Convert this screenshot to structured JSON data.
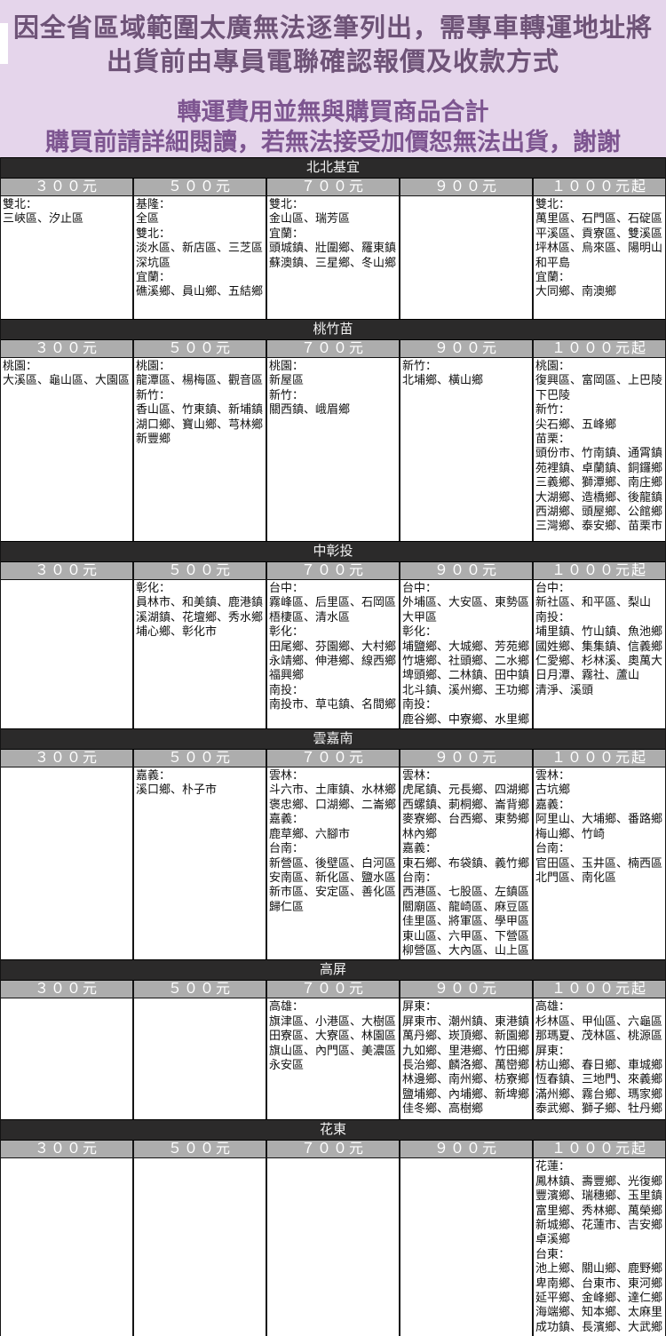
{
  "banner": {
    "line1": "因全省區域範圍太廣無法逐筆列出，需專車轉運地址將",
    "line2": "出貨前由專員電聯確認報價及收款方式",
    "line3": "轉運費用並無與購買商品合計",
    "line4": "購買前請詳細閱讀，若無法接受加價恕無法出貨，謝謝"
  },
  "colors": {
    "banner_bg": "#e5d5eb",
    "banner_text_primary": "#6e5377",
    "banner_text_secondary": "#7d5590",
    "section_bar_bg": "#2b2a2a",
    "section_bar_text": "#f2f2f2",
    "price_header_bg": "#adadad",
    "price_header_text": "#ffffff",
    "cell_bg": "#ffffff",
    "cell_text": "#111111",
    "border": "#141414"
  },
  "price_headers": [
    "３００元",
    "５００元",
    "７００元",
    "９００元",
    "１０００元起"
  ],
  "sections": [
    {
      "title": "北北基宜",
      "columns": [
        [
          "雙北：",
          "三峽區、汐止區"
        ],
        [
          "基隆：",
          "全區",
          "雙北：",
          "淡水區、新店區、三芝區",
          "深坑區",
          "宜蘭：",
          "礁溪鄉、員山鄉、五結鄉"
        ],
        [
          "雙北：",
          "金山區、瑞芳區",
          "宜蘭：",
          "頭城鎮、壯圍鄉、羅東鎮",
          "蘇澳鎮、三星鄉、冬山鄉"
        ],
        [],
        [
          "雙北：",
          "萬里區、石門區、石碇區",
          "平溪區、貢寮區、雙溪區",
          "坪林區、烏來區、陽明山",
          "和平島",
          "宜蘭：",
          "大同鄉、南澳鄉"
        ]
      ]
    },
    {
      "title": "桃竹苗",
      "columns": [
        [
          "桃園：",
          "大溪區、龜山區、大園區"
        ],
        [
          "桃園：",
          "龍潭區、楊梅區、觀音區",
          "新竹：",
          "香山區、竹東鎮、新埔鎮",
          "湖口鄉、寶山鄉、芎林鄉",
          "新豐鄉"
        ],
        [
          "桃園：",
          "新屋區",
          "新竹：",
          "關西鎮、峨眉鄉"
        ],
        [
          "新竹：",
          "北埔鄉、橫山鄉"
        ],
        [
          "桃園：",
          "復興區、富岡區、上巴陵",
          "下巴陵",
          "新竹：",
          "尖石鄉、五峰鄉",
          "苗栗：",
          "頭份市、竹南鎮、通霄鎮",
          "苑裡鎮、卓蘭鎮、銅鑼鄉",
          "三義鄉、獅潭鄉、南庄鄉",
          "大湖鄉、造橋鄉、後龍鎮",
          "西湖鄉、頭屋鄉、公館鄉",
          "三灣鄉、泰安鄉、苗栗市"
        ]
      ]
    },
    {
      "title": "中彰投",
      "columns": [
        [],
        [
          "彰化：",
          "員林市、和美鎮、鹿港鎮",
          "溪湖鎮、花壇鄉、秀水鄉",
          "埔心鄉、彰化市"
        ],
        [
          "台中：",
          "霧峰區、后里區、石岡區",
          "梧棲區、清水區",
          "彰化：",
          "田尾鄉、芬園鄉、大村鄉",
          "永靖鄉、伸港鄉、線西鄉",
          "福興鄉",
          "南投：",
          "南投市、草屯鎮、名間鄉"
        ],
        [
          "台中：",
          "外埔區、大安區、東勢區",
          "大甲區",
          "彰化：",
          "埔鹽鄉、大城鄉、芳苑鄉",
          "竹塘鄉、社頭鄉、二水鄉",
          "埤頭鄉、二林鎮、田中鎮",
          "北斗鎮、溪州鄉、王功鄉",
          "南投：",
          "鹿谷鄉、中寮鄉、水里鄉"
        ],
        [
          "台中：",
          "新社區、和平區、梨山",
          "南投：",
          "埔里鎮、竹山鎮、魚池鄉",
          "國姓鄉、集集鎮、信義鄉",
          "仁愛鄉、杉林溪、奧萬大",
          "日月潭、霧社、蘆山",
          "清淨、溪頭"
        ]
      ]
    },
    {
      "title": "雲嘉南",
      "columns": [
        [],
        [
          "嘉義：",
          "溪口鄉、朴子市"
        ],
        [
          "雲林：",
          "斗六市、土庫鎮、水林鄉",
          "褒忠鄉、口湖鄉、二崙鄉",
          "嘉義：",
          "鹿草鄉、六腳市",
          "台南：",
          "新營區、後壁區、白河區",
          "安南區、新化區、鹽水區",
          "新市區、安定區、善化區",
          "歸仁區"
        ],
        [
          "雲林：",
          "虎尾鎮、元長鄉、四湖鄉",
          "西螺鎮、莿桐鄉、崙背鄉",
          "麥寮鄉、台西鄉、東勢鄉",
          "林內鄉",
          "嘉義：",
          "東石鄉、布袋鎮、義竹鄉",
          "台南：",
          "西港區、七股區、左鎮區",
          "關廟區、龍崎區、麻豆區",
          "佳里區、將軍區、學甲區",
          "東山區、六甲區、下營區",
          "柳營區、大內區、山上區"
        ],
        [
          "雲林：",
          "古坑鄉",
          "嘉義：",
          "阿里山、大埔鄉、番路鄉",
          "梅山鄉、竹崎",
          "台南：",
          "官田區、玉井區、楠西區",
          "北門區、南化區"
        ]
      ]
    },
    {
      "title": "高屏",
      "columns": [
        [],
        [],
        [
          "高雄：",
          "旗津區、小港區、大樹區",
          "田寮區、大寮區、林園區",
          "旗山區、內門區、美濃區",
          "永安區"
        ],
        [
          "屏東：",
          "屏東市、潮州鎮、東港鎮",
          "萬丹鄉、崁頂鄉、新園鄉",
          "九如鄉、里港鄉、竹田鄉",
          "長治鄉、麟洛鄉、萬巒鄉",
          "林邊鄉、南州鄉、枋寮鄉",
          "鹽埔鄉、內埔鄉、新埤鄉",
          "佳冬鄉、高樹鄉"
        ],
        [
          "高雄：",
          "杉林區、甲仙區、六龜區",
          "那瑪夏、茂林區、桃源區",
          "屏東：",
          "枋山鄉、春日鄉、車城鄉",
          "恆春鎮、三地門、來義鄉",
          "滿州鄉、霧台鄉、瑪家鄉",
          "泰武鄉、獅子鄉、牡丹鄉"
        ]
      ]
    },
    {
      "title": "花東",
      "columns": [
        [],
        [],
        [],
        [],
        [
          "花蓮：",
          "鳳林鎮、壽豐鄉、光復鄉",
          "豐濱鄉、瑞穗鄉、玉里鎮",
          "富里鄉、秀林鄉、萬榮鄉",
          "新城鄉、花蓮市、吉安鄉",
          "卓溪鄉",
          "台東：",
          "池上鄉、關山鄉、鹿野鄉",
          "卑南鄉、台東市、東河鄉",
          "延平鄉、金峰鄉、達仁鄉",
          "海端鄉、知本鄉、太麻里",
          "成功鎮、長濱鄉、大武鄉"
        ]
      ]
    }
  ]
}
